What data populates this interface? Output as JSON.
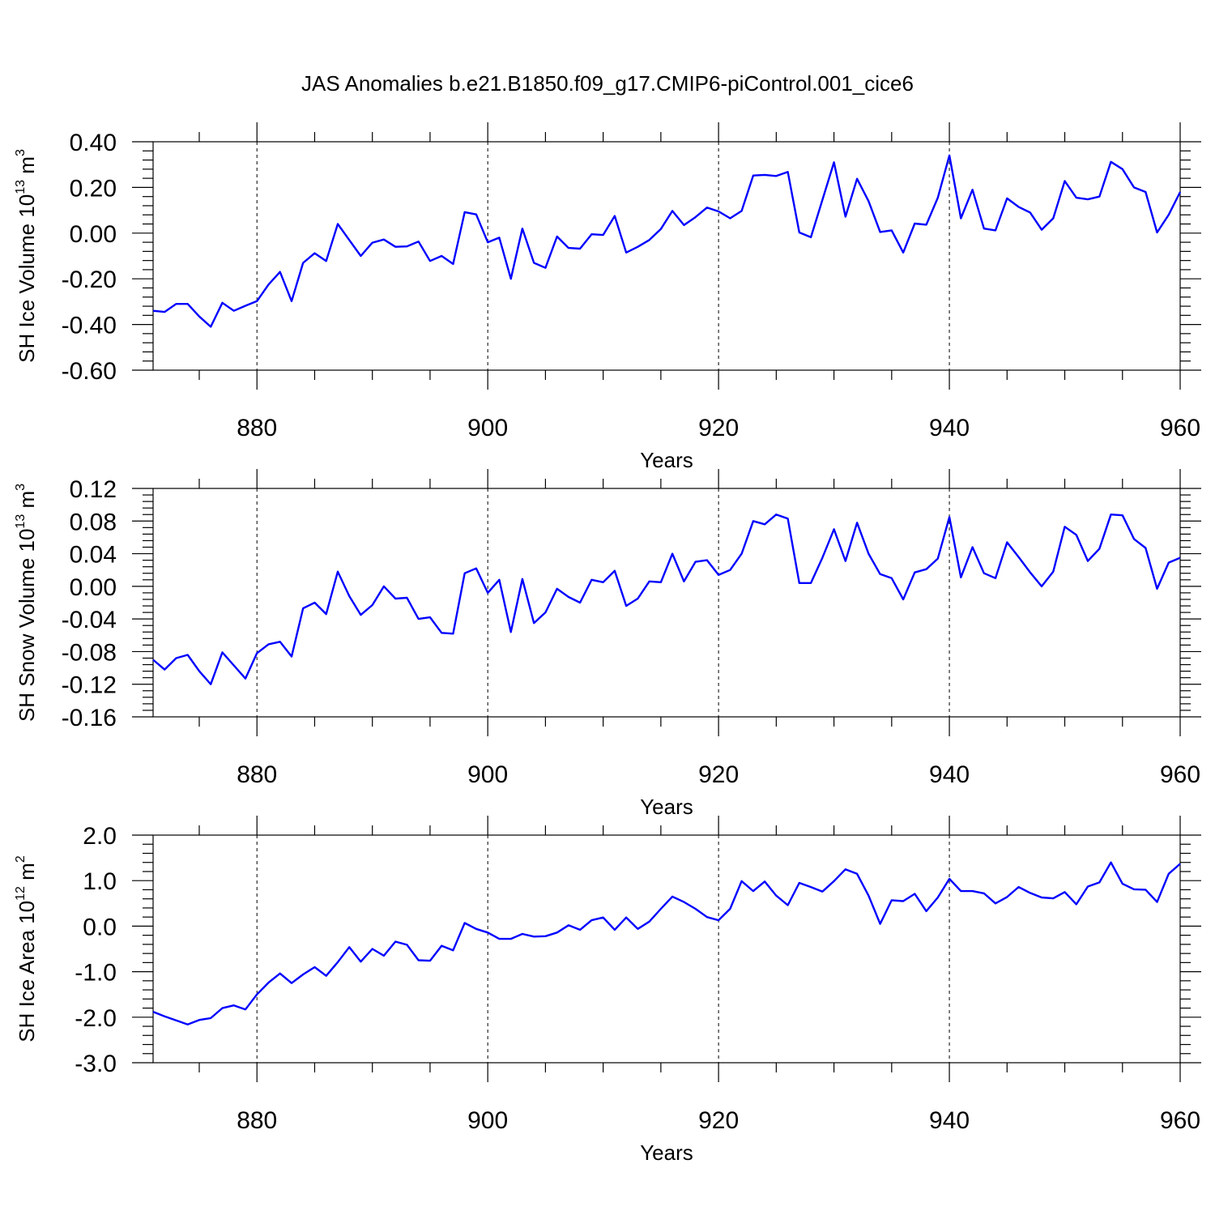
{
  "title": "JAS Anomalies b.e21.B1850.f09_g17.CMIP6-piControl.001_cice6",
  "colors": {
    "line": "#0000ff",
    "axis": "#000000"
  },
  "chart_data": [
    {
      "type": "line",
      "title": "",
      "xlabel": "Years",
      "ylabel": {
        "prefix": "SH Ice Volume 10",
        "exp": "13",
        "unit": " m",
        "unit_exp": "3"
      },
      "xlim": [
        871,
        960
      ],
      "ylim": [
        -0.6,
        0.4
      ],
      "xticks": [
        880,
        900,
        920,
        940,
        960
      ],
      "xtick_labels": [
        "880",
        "900",
        "920",
        "940",
        "960"
      ],
      "yticks": [
        -0.6,
        -0.4,
        -0.2,
        0.0,
        0.2,
        0.4
      ],
      "ytick_labels": [
        "-0.60",
        "-0.40",
        "-0.20",
        "0.00",
        "0.20",
        "0.40"
      ],
      "grid": "vertical dashed at major x ticks",
      "x_start": 871,
      "values": [
        -0.34,
        -0.345,
        -0.31,
        -0.31,
        -0.365,
        -0.41,
        -0.305,
        -0.34,
        -0.318,
        -0.298,
        -0.225,
        -0.17,
        -0.298,
        -0.13,
        -0.088,
        -0.122,
        0.04,
        -0.03,
        -0.1,
        -0.042,
        -0.028,
        -0.06,
        -0.058,
        -0.037,
        -0.122,
        -0.1,
        -0.135,
        0.092,
        0.082,
        -0.04,
        -0.02,
        -0.2,
        0.02,
        -0.13,
        -0.152,
        -0.015,
        -0.065,
        -0.068,
        -0.005,
        -0.008,
        0.075,
        -0.085,
        -0.06,
        -0.03,
        0.018,
        0.097,
        0.035,
        0.07,
        0.112,
        0.095,
        0.065,
        0.097,
        0.252,
        0.255,
        0.25,
        0.268,
        0.003,
        -0.018,
        0.145,
        0.31,
        0.072,
        0.238,
        0.14,
        0.005,
        0.012,
        -0.085,
        0.042,
        0.037,
        0.155,
        0.34,
        0.065,
        0.19,
        0.02,
        0.012,
        0.152,
        0.115,
        0.09,
        0.015,
        0.065,
        0.228,
        0.155,
        0.148,
        0.16,
        0.312,
        0.28,
        0.2,
        0.18,
        0.003,
        0.08,
        0.18
      ]
    },
    {
      "type": "line",
      "title": "",
      "xlabel": "Years",
      "ylabel": {
        "prefix": "SH Snow Volume 10",
        "exp": "13",
        "unit": " m",
        "unit_exp": "3"
      },
      "xlim": [
        871,
        960
      ],
      "ylim": [
        -0.16,
        0.12
      ],
      "xticks": [
        880,
        900,
        920,
        940,
        960
      ],
      "xtick_labels": [
        "880",
        "900",
        "920",
        "940",
        "960"
      ],
      "yticks": [
        -0.16,
        -0.12,
        -0.08,
        -0.04,
        0.0,
        0.04,
        0.08,
        0.12
      ],
      "ytick_labels": [
        "-0.16",
        "-0.12",
        "-0.08",
        "-0.04",
        "0.00",
        "0.04",
        "0.08",
        "0.12"
      ],
      "grid": "vertical dashed at major x ticks",
      "x_start": 871,
      "values": [
        -0.09,
        -0.102,
        -0.088,
        -0.084,
        -0.104,
        -0.12,
        -0.081,
        -0.097,
        -0.113,
        -0.082,
        -0.071,
        -0.068,
        -0.086,
        -0.027,
        -0.02,
        -0.034,
        0.018,
        -0.012,
        -0.035,
        -0.023,
        0.0,
        -0.015,
        -0.014,
        -0.04,
        -0.038,
        -0.057,
        -0.058,
        0.016,
        0.022,
        -0.008,
        0.008,
        -0.056,
        0.009,
        -0.045,
        -0.032,
        -0.003,
        -0.013,
        -0.02,
        0.008,
        0.005,
        0.019,
        -0.024,
        -0.015,
        0.006,
        0.005,
        0.04,
        0.006,
        0.03,
        0.032,
        0.014,
        0.02,
        0.04,
        0.08,
        0.076,
        0.088,
        0.083,
        0.004,
        0.004,
        0.035,
        0.07,
        0.031,
        0.078,
        0.04,
        0.015,
        0.01,
        -0.016,
        0.017,
        0.021,
        0.034,
        0.085,
        0.011,
        0.048,
        0.016,
        0.01,
        0.054,
        0.036,
        0.017,
        0.0,
        0.018,
        0.073,
        0.063,
        0.031,
        0.046,
        0.088,
        0.087,
        0.058,
        0.047,
        -0.003,
        0.029,
        0.035
      ]
    },
    {
      "type": "line",
      "title": "",
      "xlabel": "Years",
      "ylabel": {
        "prefix": "SH Ice Area 10",
        "exp": "12",
        "unit": " m",
        "unit_exp": "2"
      },
      "xlim": [
        871,
        960
      ],
      "ylim": [
        -3.0,
        2.0
      ],
      "xticks": [
        880,
        900,
        920,
        940,
        960
      ],
      "xtick_labels": [
        "880",
        "900",
        "920",
        "940",
        "960"
      ],
      "yticks": [
        -3.0,
        -2.0,
        -1.0,
        0.0,
        1.0,
        2.0
      ],
      "ytick_labels": [
        "-3.0",
        "-2.0",
        "-1.0",
        "0.0",
        "1.0",
        "2.0"
      ],
      "grid": "vertical dashed at major x ticks",
      "x_start": 871,
      "values": [
        -1.88,
        -1.98,
        -2.07,
        -2.16,
        -2.06,
        -2.02,
        -1.8,
        -1.74,
        -1.83,
        -1.5,
        -1.24,
        -1.04,
        -1.25,
        -1.06,
        -0.9,
        -1.09,
        -0.79,
        -0.46,
        -0.78,
        -0.5,
        -0.65,
        -0.34,
        -0.41,
        -0.75,
        -0.76,
        -0.43,
        -0.53,
        0.07,
        -0.06,
        -0.14,
        -0.28,
        -0.28,
        -0.17,
        -0.23,
        -0.22,
        -0.14,
        0.02,
        -0.08,
        0.13,
        0.19,
        -0.08,
        0.19,
        -0.06,
        0.1,
        0.38,
        0.65,
        0.53,
        0.38,
        0.2,
        0.13,
        0.38,
        0.99,
        0.77,
        0.98,
        0.67,
        0.46,
        0.95,
        0.86,
        0.76,
        0.99,
        1.25,
        1.15,
        0.67,
        0.05,
        0.57,
        0.55,
        0.71,
        0.33,
        0.63,
        1.04,
        0.77,
        0.77,
        0.72,
        0.5,
        0.64,
        0.86,
        0.73,
        0.63,
        0.61,
        0.75,
        0.48,
        0.87,
        0.96,
        1.4,
        0.93,
        0.81,
        0.8,
        0.53,
        1.15,
        1.37
      ]
    }
  ]
}
